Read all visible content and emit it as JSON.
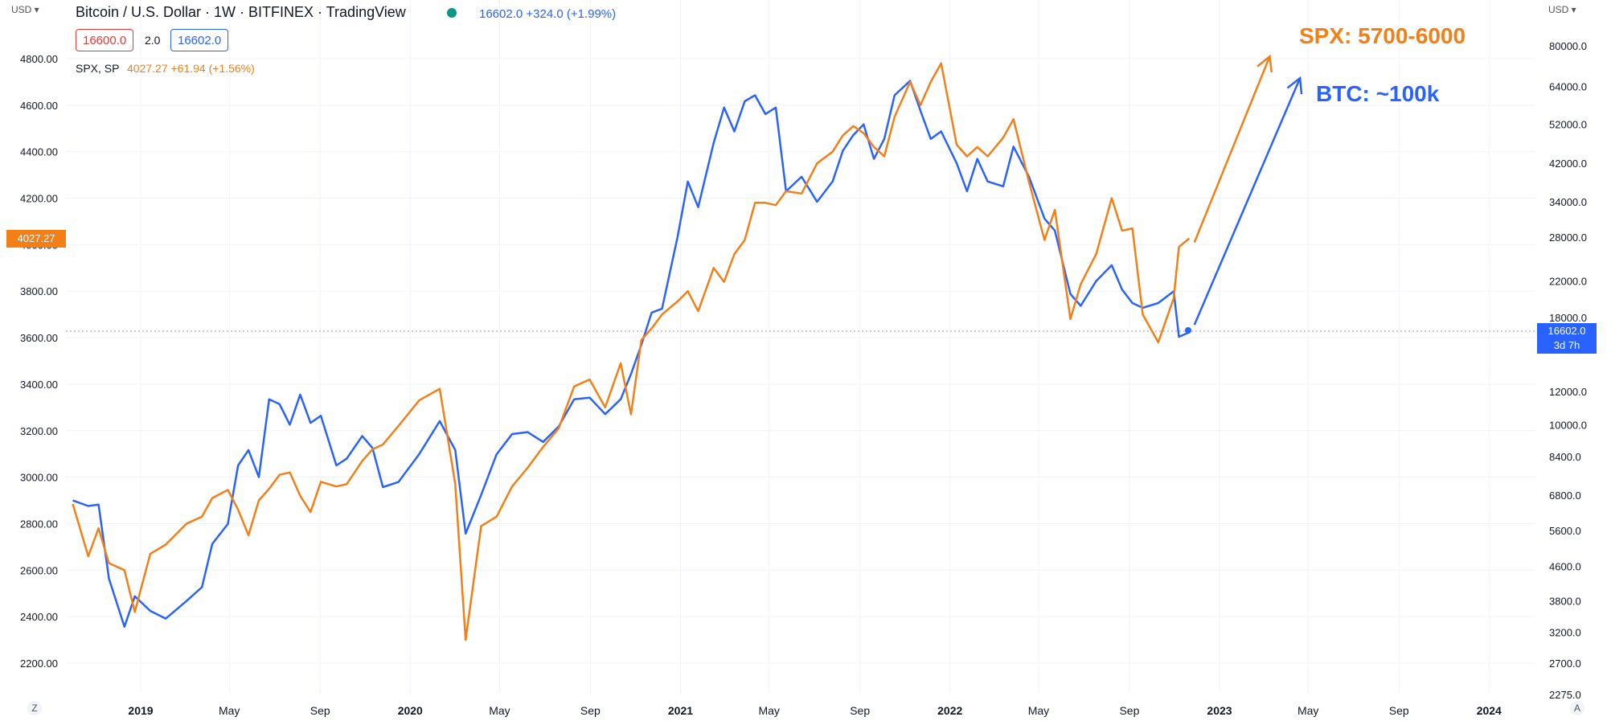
{
  "header": {
    "currency_left": "USD",
    "currency_right": "USD",
    "symbol_title": "Bitcoin / U.S. Dollar · 1W · BITFINEX · TradingView",
    "btc_quote": "16602.0  +324.0 (+1.99%)",
    "bid": "16600.0",
    "spread": "2.0",
    "ask": "16602.0",
    "compare_symbol": "SPX, SP",
    "compare_quote": "4027.27  +61.94 (+1.56%)"
  },
  "price_tags": {
    "spx_last": "4027.27",
    "btc_last": "16602.0",
    "btc_countdown": "3d 7h"
  },
  "bottom": {
    "left_button": "Z",
    "right_button": "A"
  },
  "colors": {
    "btc": "#2962ff",
    "spx": "#f57f17",
    "bid": "#e53935",
    "ask": "#2962ff",
    "grid": "#f0f3fa",
    "axis_text": "#131722"
  },
  "chart_data": {
    "type": "line",
    "title": "Bitcoin / U.S. Dollar · 1W · BITFINEX · TradingView",
    "x_ticks": [
      "2019",
      "May",
      "Sep",
      "2020",
      "May",
      "Sep",
      "2021",
      "May",
      "Sep",
      "2022",
      "May",
      "Sep",
      "2023",
      "May",
      "Sep",
      "2024"
    ],
    "left_axis": {
      "series": "SPX",
      "ticks": [
        "4800.00",
        "4600.00",
        "4400.00",
        "4200.00",
        "4000.00",
        "3800.00",
        "3600.00",
        "3400.00",
        "3200.00",
        "3000.00",
        "2800.00",
        "2600.00",
        "2400.00",
        "2200.00"
      ],
      "range": [
        2120,
        4860
      ]
    },
    "right_axis": {
      "series": "BTC",
      "scale": "log",
      "ticks": [
        "80000.0",
        "64000.0",
        "52000.0",
        "42000.0",
        "34000.0",
        "28000.0",
        "22000.0",
        "18000.0",
        "12000.0",
        "10000.0",
        "8400.0",
        "6800.0",
        "5600.0",
        "4600.0",
        "3800.0",
        "3200.0",
        "2700.0",
        "2275.0"
      ]
    },
    "series": [
      {
        "name": "Bitcoin / U.S. Dollar",
        "points": [
          [
            "2018-10-01",
            6600
          ],
          [
            "2018-10-22",
            6400
          ],
          [
            "2018-11-05",
            6450
          ],
          [
            "2018-11-19",
            4300
          ],
          [
            "2018-12-10",
            3300
          ],
          [
            "2018-12-24",
            3900
          ],
          [
            "2019-01-14",
            3600
          ],
          [
            "2019-02-04",
            3450
          ],
          [
            "2019-03-04",
            3800
          ],
          [
            "2019-03-25",
            4100
          ],
          [
            "2019-04-08",
            5200
          ],
          [
            "2019-04-29",
            5800
          ],
          [
            "2019-05-13",
            8000
          ],
          [
            "2019-05-27",
            8700
          ],
          [
            "2019-06-10",
            7500
          ],
          [
            "2019-06-24",
            11500
          ],
          [
            "2019-07-08",
            11200
          ],
          [
            "2019-07-22",
            10000
          ],
          [
            "2019-08-05",
            11800
          ],
          [
            "2019-08-19",
            10100
          ],
          [
            "2019-09-02",
            10500
          ],
          [
            "2019-09-23",
            8000
          ],
          [
            "2019-10-07",
            8300
          ],
          [
            "2019-10-28",
            9400
          ],
          [
            "2019-11-11",
            8800
          ],
          [
            "2019-11-25",
            7100
          ],
          [
            "2019-12-16",
            7300
          ],
          [
            "2020-01-13",
            8500
          ],
          [
            "2020-02-10",
            10200
          ],
          [
            "2020-03-02",
            8700
          ],
          [
            "2020-03-16",
            5500
          ],
          [
            "2020-04-06",
            6800
          ],
          [
            "2020-04-27",
            8500
          ],
          [
            "2020-05-18",
            9500
          ],
          [
            "2020-06-08",
            9600
          ],
          [
            "2020-06-29",
            9100
          ],
          [
            "2020-07-20",
            9900
          ],
          [
            "2020-08-10",
            11500
          ],
          [
            "2020-08-31",
            11600
          ],
          [
            "2020-09-21",
            10600
          ],
          [
            "2020-10-12",
            11500
          ],
          [
            "2020-10-26",
            13200
          ],
          [
            "2020-11-09",
            15500
          ],
          [
            "2020-11-23",
            18500
          ],
          [
            "2020-12-07",
            18900
          ],
          [
            "2020-12-28",
            28000
          ],
          [
            "2021-01-11",
            38000
          ],
          [
            "2021-01-25",
            33000
          ],
          [
            "2021-02-15",
            47000
          ],
          [
            "2021-03-01",
            57000
          ],
          [
            "2021-03-15",
            50000
          ],
          [
            "2021-03-29",
            59000
          ],
          [
            "2021-04-12",
            61000
          ],
          [
            "2021-04-26",
            55000
          ],
          [
            "2021-05-10",
            57000
          ],
          [
            "2021-05-24",
            36000
          ],
          [
            "2021-06-14",
            39000
          ],
          [
            "2021-07-05",
            34000
          ],
          [
            "2021-07-26",
            38000
          ],
          [
            "2021-08-09",
            45000
          ],
          [
            "2021-08-23",
            49000
          ],
          [
            "2021-09-06",
            52000
          ],
          [
            "2021-09-20",
            43000
          ],
          [
            "2021-10-04",
            48000
          ],
          [
            "2021-10-18",
            61000
          ],
          [
            "2021-11-08",
            66000
          ],
          [
            "2021-11-22",
            56000
          ],
          [
            "2021-12-06",
            48000
          ],
          [
            "2021-12-20",
            50000
          ],
          [
            "2022-01-10",
            42000
          ],
          [
            "2022-01-24",
            36000
          ],
          [
            "2022-02-07",
            43000
          ],
          [
            "2022-02-21",
            38000
          ],
          [
            "2022-03-14",
            37000
          ],
          [
            "2022-03-28",
            46000
          ],
          [
            "2022-04-18",
            39000
          ],
          [
            "2022-05-09",
            31000
          ],
          [
            "2022-05-23",
            29000
          ],
          [
            "2022-06-13",
            20500
          ],
          [
            "2022-06-27",
            19200
          ],
          [
            "2022-07-18",
            22000
          ],
          [
            "2022-08-08",
            24000
          ],
          [
            "2022-08-22",
            21000
          ],
          [
            "2022-09-05",
            19500
          ],
          [
            "2022-09-19",
            19000
          ],
          [
            "2022-10-10",
            19500
          ],
          [
            "2022-10-31",
            20800
          ],
          [
            "2022-11-07",
            16200
          ],
          [
            "2022-11-21",
            16600
          ]
        ]
      },
      {
        "name": "SPX",
        "points": [
          [
            "2018-10-01",
            2885
          ],
          [
            "2018-10-22",
            2660
          ],
          [
            "2018-11-05",
            2780
          ],
          [
            "2018-11-19",
            2630
          ],
          [
            "2018-12-10",
            2600
          ],
          [
            "2018-12-24",
            2420
          ],
          [
            "2019-01-14",
            2670
          ],
          [
            "2019-02-04",
            2710
          ],
          [
            "2019-03-04",
            2800
          ],
          [
            "2019-03-25",
            2830
          ],
          [
            "2019-04-08",
            2910
          ],
          [
            "2019-04-29",
            2945
          ],
          [
            "2019-05-13",
            2860
          ],
          [
            "2019-05-27",
            2750
          ],
          [
            "2019-06-10",
            2900
          ],
          [
            "2019-06-24",
            2950
          ],
          [
            "2019-07-08",
            3010
          ],
          [
            "2019-07-22",
            3020
          ],
          [
            "2019-08-05",
            2920
          ],
          [
            "2019-08-19",
            2850
          ],
          [
            "2019-09-02",
            2980
          ],
          [
            "2019-09-23",
            2960
          ],
          [
            "2019-10-07",
            2970
          ],
          [
            "2019-10-28",
            3070
          ],
          [
            "2019-11-11",
            3120
          ],
          [
            "2019-11-25",
            3140
          ],
          [
            "2019-12-16",
            3220
          ],
          [
            "2020-01-13",
            3330
          ],
          [
            "2020-02-10",
            3380
          ],
          [
            "2020-03-02",
            2970
          ],
          [
            "2020-03-16",
            2300
          ],
          [
            "2020-04-06",
            2790
          ],
          [
            "2020-04-27",
            2830
          ],
          [
            "2020-05-18",
            2960
          ],
          [
            "2020-06-08",
            3040
          ],
          [
            "2020-06-29",
            3130
          ],
          [
            "2020-07-20",
            3210
          ],
          [
            "2020-08-10",
            3390
          ],
          [
            "2020-08-31",
            3420
          ],
          [
            "2020-09-21",
            3300
          ],
          [
            "2020-10-12",
            3490
          ],
          [
            "2020-10-26",
            3270
          ],
          [
            "2020-11-09",
            3590
          ],
          [
            "2020-11-23",
            3640
          ],
          [
            "2020-12-07",
            3700
          ],
          [
            "2020-12-28",
            3756
          ],
          [
            "2021-01-11",
            3800
          ],
          [
            "2021-01-25",
            3714
          ],
          [
            "2021-02-15",
            3900
          ],
          [
            "2021-03-01",
            3840
          ],
          [
            "2021-03-15",
            3960
          ],
          [
            "2021-03-29",
            4020
          ],
          [
            "2021-04-12",
            4180
          ],
          [
            "2021-04-26",
            4180
          ],
          [
            "2021-05-10",
            4170
          ],
          [
            "2021-05-24",
            4230
          ],
          [
            "2021-06-14",
            4220
          ],
          [
            "2021-07-05",
            4350
          ],
          [
            "2021-07-26",
            4400
          ],
          [
            "2021-08-09",
            4470
          ],
          [
            "2021-08-23",
            4510
          ],
          [
            "2021-09-06",
            4480
          ],
          [
            "2021-09-20",
            4420
          ],
          [
            "2021-10-04",
            4380
          ],
          [
            "2021-10-18",
            4550
          ],
          [
            "2021-11-08",
            4700
          ],
          [
            "2021-11-22",
            4600
          ],
          [
            "2021-12-06",
            4700
          ],
          [
            "2021-12-20",
            4780
          ],
          [
            "2022-01-10",
            4430
          ],
          [
            "2022-01-24",
            4380
          ],
          [
            "2022-02-07",
            4420
          ],
          [
            "2022-02-21",
            4380
          ],
          [
            "2022-03-14",
            4460
          ],
          [
            "2022-03-28",
            4540
          ],
          [
            "2022-04-18",
            4270
          ],
          [
            "2022-05-09",
            4020
          ],
          [
            "2022-05-23",
            4150
          ],
          [
            "2022-06-13",
            3680
          ],
          [
            "2022-06-27",
            3830
          ],
          [
            "2022-07-18",
            3960
          ],
          [
            "2022-08-08",
            4200
          ],
          [
            "2022-08-22",
            4060
          ],
          [
            "2022-09-05",
            4070
          ],
          [
            "2022-09-19",
            3700
          ],
          [
            "2022-10-10",
            3580
          ],
          [
            "2022-10-31",
            3770
          ],
          [
            "2022-11-07",
            3990
          ],
          [
            "2022-11-21",
            4027
          ]
        ]
      }
    ],
    "projections": [
      {
        "label": "SPX: 5700-6000",
        "series": "SPX",
        "from": [
          "2022-11-28",
          4010
        ],
        "to": [
          "2023-03-10",
          4810
        ]
      },
      {
        "label": "BTC: ~100k",
        "series": "Bitcoin / U.S. Dollar",
        "from": [
          "2022-11-28",
          17300
        ],
        "to": [
          "2023-04-20",
          67000
        ]
      }
    ],
    "grid": true,
    "legend": "top-left"
  }
}
